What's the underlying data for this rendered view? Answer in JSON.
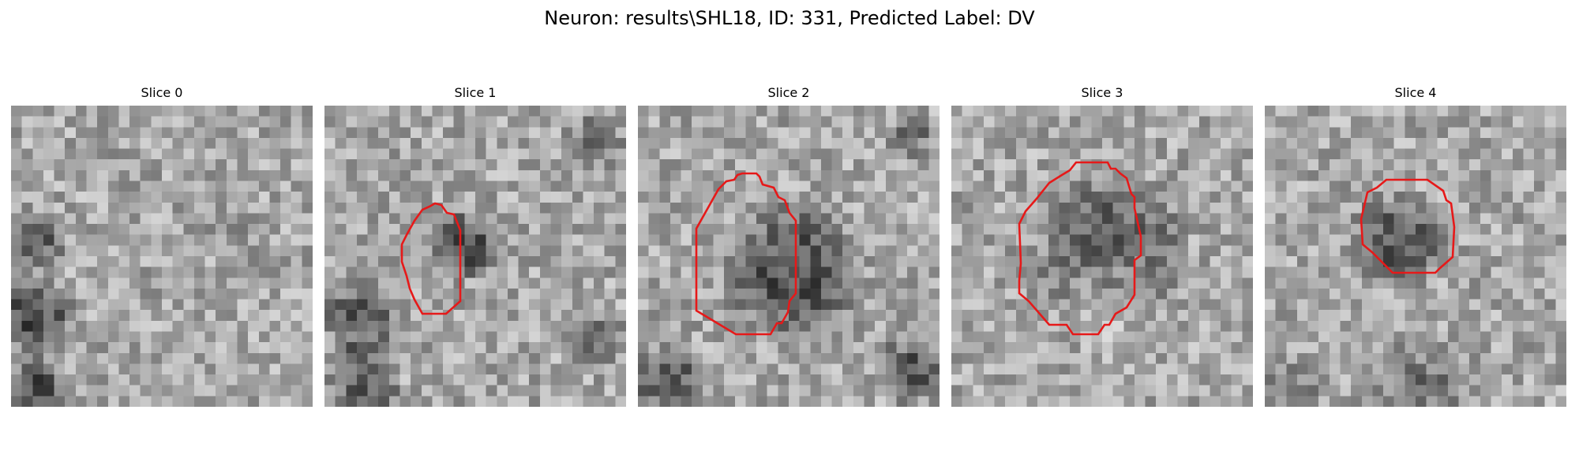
{
  "title": "Neuron: results\\SHL18, ID: 331, Predicted Label: DV",
  "panels": [
    {
      "title": "Slice 0",
      "contour_color": "#e61919",
      "has_contour": false
    },
    {
      "title": "Slice 1",
      "contour_color": "#e61919",
      "has_contour": true
    },
    {
      "title": "Slice 2",
      "contour_color": "#e61919",
      "has_contour": true
    },
    {
      "title": "Slice 3",
      "contour_color": "#e61919",
      "has_contour": true
    },
    {
      "title": "Slice 4",
      "contour_color": "#e61919",
      "has_contour": true
    }
  ],
  "colormap": "gray"
}
